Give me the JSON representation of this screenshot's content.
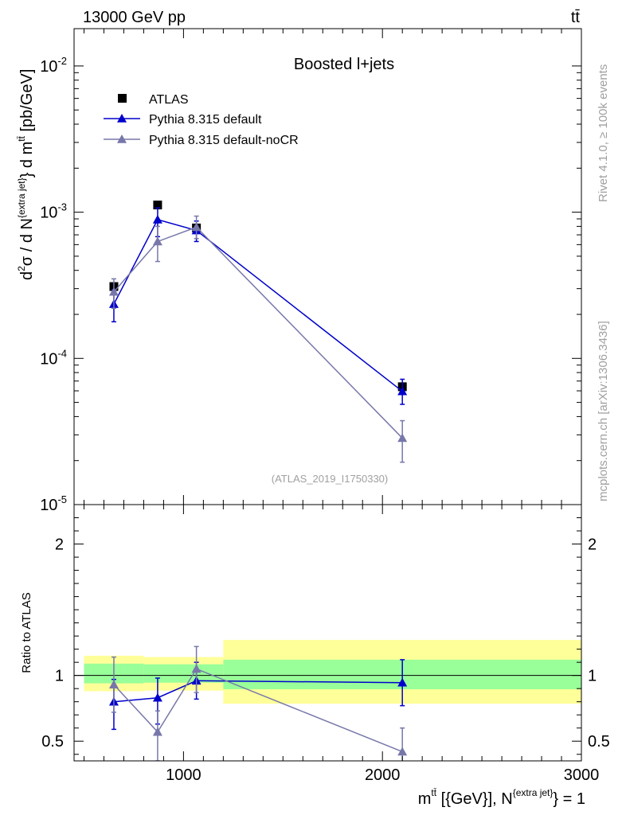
{
  "header": {
    "left": "13000 GeV pp",
    "right": "tt̄"
  },
  "side_labels": {
    "rivet": "Rivet 4.1.0, ≥ 100k events",
    "mcplots": "mcplots.cern.ch [arXiv:1306.3436]"
  },
  "chart_data": {
    "type": "scatter",
    "title": "Boosted l+jets",
    "watermark": "(ATLAS_2019_I1750330)",
    "xlabel": "m^{tt̄} [{GeV}], N^{extra jet} = 1",
    "xlabel_parts": {
      "m": "m",
      "m_sup": "tt̄",
      "mid": " [{GeV}], N",
      "n_sup": "{extra jet}",
      "end": "} = 1"
    },
    "ylabel_parts": {
      "a": "d",
      "a_sup": "2",
      "b": "σ  /  d N",
      "b_sup": "{extra jet}",
      "c": "} d m",
      "c_sup": "tt̄",
      "d": " [pb/GeV]"
    },
    "ratio_ylabel": "Ratio to ATLAS",
    "xlim": [
      450,
      3000
    ],
    "ylim": [
      1e-05,
      0.018
    ],
    "yscale": "log",
    "ratio_ylim": [
      0.35,
      2.3
    ],
    "x_ticks": [
      {
        "value": 1000,
        "label": "1000"
      },
      {
        "value": 2000,
        "label": "2000"
      },
      {
        "value": 3000,
        "label": "3000"
      }
    ],
    "y_ticks": [
      {
        "value": 0.01,
        "mant": "10",
        "exp": "-2"
      },
      {
        "value": 0.001,
        "mant": "10",
        "exp": "-3"
      },
      {
        "value": 0.0001,
        "mant": "10",
        "exp": "-4"
      },
      {
        "value": 1e-05,
        "mant": "10",
        "exp": "-5"
      }
    ],
    "ratio_ticks": [
      {
        "value": 0.5,
        "label": "0.5"
      },
      {
        "value": 1,
        "label": "1"
      },
      {
        "value": 2,
        "label": "2"
      }
    ],
    "bins": [
      {
        "lo": 500,
        "hi": 800,
        "band_inner": [
          0.94,
          1.09
        ],
        "band_outer": [
          0.88,
          1.15
        ]
      },
      {
        "lo": 800,
        "hi": 1200,
        "band_inner": [
          0.945,
          1.085
        ],
        "band_outer": [
          0.885,
          1.14
        ]
      },
      {
        "lo": 1200,
        "hi": 3000,
        "band_inner": [
          0.895,
          1.12
        ],
        "band_outer": [
          0.785,
          1.27
        ]
      }
    ],
    "series": [
      {
        "name": "ATLAS",
        "color": "#000000",
        "marker": "square",
        "points": [
          {
            "x": 650,
            "y": 0.00031
          },
          {
            "x": 870,
            "y": 0.00112
          },
          {
            "x": 1065,
            "y": 0.00078
          },
          {
            "x": 2100,
            "y": 6.4e-05
          }
        ]
      },
      {
        "name": "Pythia 8.315 default",
        "color": "#0000cc",
        "marker": "triangle",
        "points": [
          {
            "x": 650,
            "y": 0.000235,
            "ylo": 0.000178,
            "yhi": 0.000295,
            "r": 0.8,
            "rlo": 0.59,
            "rhi": 0.97
          },
          {
            "x": 870,
            "y": 0.00089,
            "ylo": 0.00068,
            "yhi": 0.00107,
            "r": 0.83,
            "rlo": 0.63,
            "rhi": 0.98
          },
          {
            "x": 1065,
            "y": 0.00075,
            "ylo": 0.00063,
            "yhi": 0.00087,
            "r": 0.96,
            "rlo": 0.82,
            "rhi": 1.1
          },
          {
            "x": 2100,
            "y": 5.95e-05,
            "ylo": 4.85e-05,
            "yhi": 7.2e-05,
            "r": 0.945,
            "rlo": 0.77,
            "rhi": 1.12
          }
        ]
      },
      {
        "name": "Pythia 8.315 default-noCR",
        "color": "#7777aa",
        "marker": "triangle",
        "points": [
          {
            "x": 650,
            "y": 0.000285,
            "ylo": 0.00022,
            "yhi": 0.00035,
            "r": 0.93,
            "rlo": 0.72,
            "rhi": 1.14
          },
          {
            "x": 870,
            "y": 0.00063,
            "ylo": 0.00046,
            "yhi": 0.0008,
            "r": 0.57,
            "rlo": 0.35,
            "rhi": 0.73
          },
          {
            "x": 1065,
            "y": 0.00079,
            "ylo": 0.00066,
            "yhi": 0.00094,
            "r": 1.05,
            "rlo": 0.87,
            "rhi": 1.22
          },
          {
            "x": 2100,
            "y": 2.85e-05,
            "ylo": 1.95e-05,
            "yhi": 3.75e-05,
            "r": 0.42,
            "rlo": 0.28,
            "rhi": 0.6
          }
        ]
      }
    ],
    "legend": [
      {
        "label": "ATLAS"
      },
      {
        "label": "Pythia 8.315 default"
      },
      {
        "label": "Pythia 8.315 default-noCR"
      }
    ]
  }
}
